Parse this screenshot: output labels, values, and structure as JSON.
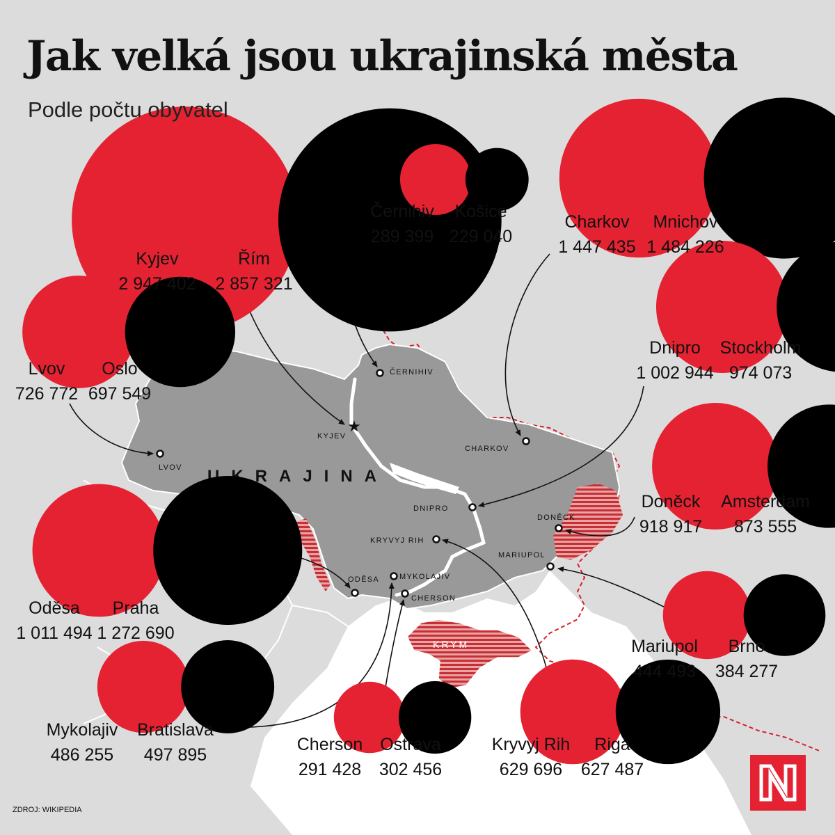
{
  "title": "Jak velká jsou ukrajinská města",
  "subtitle": "Podle počtu obyvatel",
  "source": "ZDROJ: WIKIPEDIA",
  "colors": {
    "ukraine_city": "#e52231",
    "foreign_city": "#000000",
    "ukraine_fill": "#999999",
    "occupied": "#c94a4a",
    "sea": "#ffffff",
    "background": "#dcdcdc"
  },
  "map_labels": {
    "country": "UKRAJINA",
    "crimea": "KRYM",
    "kyjev": "KYJEV",
    "lvov": "LVOV",
    "cernihiv": "ČERNIHIV",
    "charkov": "CHARKOV",
    "dnipro": "DNIPRO",
    "doneck": "DONĚCK",
    "mariupol": "MARIUPOL",
    "kryvyj_rih": "KRYVYJ RIH",
    "odesa": "ODĚSA",
    "mykolajiv": "MYKOLAJIV",
    "cherson": "CHERSON"
  },
  "comparisons": [
    {
      "id": "kyjev",
      "ua_name": "Kyjev",
      "ua_pop": "2 947 402",
      "other_name": "Řím",
      "other_pop": "2 857 321"
    },
    {
      "id": "cernihiv",
      "ua_name": "Černihiv",
      "ua_pop": "289 399",
      "other_name": "Košice",
      "other_pop": "229 040"
    },
    {
      "id": "charkov",
      "ua_name": "Charkov",
      "ua_pop": "1 447 435",
      "other_name": "Mnichov",
      "other_pop": "1 484 226"
    },
    {
      "id": "dnipro",
      "ua_name": "Dnipro",
      "ua_pop": "1 002 944",
      "other_name": "Stockholm",
      "other_pop": "974 073"
    },
    {
      "id": "lvov",
      "ua_name": "Lvov",
      "ua_pop": "726 772",
      "other_name": "Oslo",
      "other_pop": "697 549"
    },
    {
      "id": "doneck",
      "ua_name": "Doněck",
      "ua_pop": "918 917",
      "other_name": "Amsterdam",
      "other_pop": "873 555"
    },
    {
      "id": "odesa",
      "ua_name": "Oděsa",
      "ua_pop": "1 011 494",
      "other_name": "Praha",
      "other_pop": "1 272 690"
    },
    {
      "id": "mariupol",
      "ua_name": "Mariupol",
      "ua_pop": "444 493",
      "other_name": "Brno",
      "other_pop": "384 277"
    },
    {
      "id": "mykolajiv",
      "ua_name": "Mykolajiv",
      "ua_pop": "486 255",
      "other_name": "Bratislava",
      "other_pop": "497 895"
    },
    {
      "id": "cherson",
      "ua_name": "Cherson",
      "ua_pop": "291 428",
      "other_name": "Ostrava",
      "other_pop": "302 456"
    },
    {
      "id": "kryvyj_rih",
      "ua_name": "Kryvyj Rih",
      "ua_pop": "629 696",
      "other_name": "Riga",
      "other_pop": "627 487"
    }
  ]
}
